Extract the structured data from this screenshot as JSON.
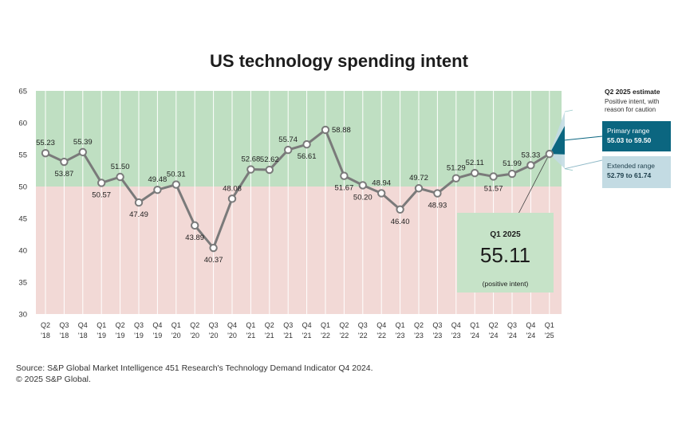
{
  "title": "US technology spending intent",
  "chart_data": {
    "type": "line",
    "categories": [
      "Q2 '18",
      "Q3 '18",
      "Q4 '18",
      "Q1 '19",
      "Q2 '19",
      "Q3 '19",
      "Q4 '19",
      "Q1 '20",
      "Q2 '20",
      "Q3 '20",
      "Q4 '20",
      "Q1 '21",
      "Q2 '21",
      "Q3 '21",
      "Q4 '21",
      "Q1 '22",
      "Q2 '22",
      "Q3 '22",
      "Q4 '22",
      "Q1 '23",
      "Q2 '23",
      "Q3 '23",
      "Q4 '23",
      "Q1 '24",
      "Q2 '24",
      "Q3 '24",
      "Q4 '24",
      "Q1 '25"
    ],
    "tick_top": [
      "Q2",
      "Q3",
      "Q4",
      "Q1",
      "Q2",
      "Q3",
      "Q4",
      "Q1",
      "Q2",
      "Q3",
      "Q4",
      "Q1",
      "Q2",
      "Q3",
      "Q4",
      "Q1",
      "Q2",
      "Q3",
      "Q4",
      "Q1",
      "Q2",
      "Q3",
      "Q4",
      "Q1",
      "Q2",
      "Q3",
      "Q4",
      "Q1"
    ],
    "tick_bottom": [
      "'18",
      "'18",
      "'18",
      "'19",
      "'19",
      "'19",
      "'19",
      "'20",
      "'20",
      "'20",
      "'20",
      "'21",
      "'21",
      "'21",
      "'21",
      "'22",
      "'22",
      "'22",
      "'22",
      "'23",
      "'23",
      "'23",
      "'23",
      "'24",
      "'24",
      "'24",
      "'24",
      "'25"
    ],
    "values": [
      55.23,
      53.87,
      55.39,
      50.57,
      51.5,
      47.49,
      49.48,
      50.31,
      43.89,
      40.37,
      48.08,
      52.68,
      52.62,
      55.74,
      56.61,
      58.88,
      51.67,
      50.2,
      48.94,
      46.4,
      49.72,
      48.93,
      51.29,
      52.11,
      51.57,
      51.99,
      53.33,
      55.11
    ],
    "labels": [
      "55.23",
      "53.87",
      "55.39",
      "50.57",
      "51.50",
      "47.49",
      "49.48",
      "50.31",
      "43.89",
      "40.37",
      "48.08",
      "52.68",
      "52.62",
      "55.74",
      "56.61",
      "58.88",
      "51.67",
      "50.20",
      "48.94",
      "46.40",
      "49.72",
      "48.93",
      "51.29",
      "52.11",
      "51.57",
      "51.99",
      "53.33",
      "55.11"
    ],
    "label_pos": [
      "above",
      "below",
      "above",
      "below",
      "above",
      "below",
      "above",
      "above",
      "below",
      "below",
      "above",
      "above",
      "above",
      "above",
      "below",
      "right",
      "below",
      "below",
      "above",
      "below",
      "above",
      "below",
      "above",
      "above",
      "below",
      "above",
      "above",
      "above"
    ],
    "ylim": [
      30,
      65
    ],
    "yticks": [
      30,
      35,
      40,
      45,
      50,
      55,
      60,
      65
    ],
    "threshold": 50,
    "colors": {
      "positive_zone": "#bfdfc2",
      "negative_zone": "#f2d9d6",
      "line": "#7a7a7a",
      "marker_fill": "#ffffff",
      "primary": "#0b6680",
      "extended": "#c3dbe3"
    },
    "forecast": {
      "primary_range": [
        55.03,
        59.5
      ],
      "extended_range": [
        52.79,
        61.74
      ]
    }
  },
  "estimate": {
    "heading": "Q2 2025 estimate",
    "subtitle": "Positive intent, with reason for caution",
    "primary_label": "Primary range",
    "primary_value": "55.03 to 59.50",
    "extended_label": "Extended range",
    "extended_value": "52.79 to 61.74"
  },
  "callout": {
    "label": "Q1 2025",
    "value": "55.11",
    "note": "(positive intent)"
  },
  "source": "Source: S&P Global Market Intelligence 451 Research's Technology Demand Indicator Q4 2024.",
  "copyright": "© 2025 S&P Global."
}
